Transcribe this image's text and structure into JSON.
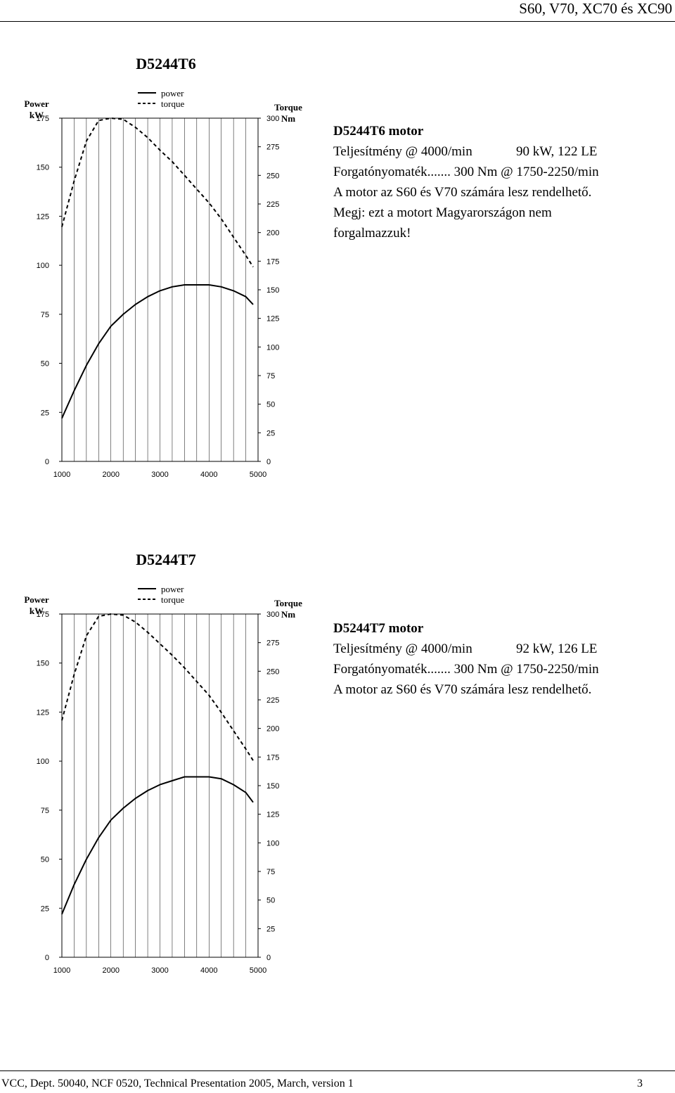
{
  "page": {
    "header": "S60, V70, XC70 és XC90",
    "footer_left": "VCC, Dept. 50040, NCF 0520, Technical Presentation 2005, March, version 1",
    "footer_page": "3"
  },
  "sections": [
    {
      "info": {
        "title": "D5244T6 motor",
        "power_label": "Teljesítmény @ 4000/min",
        "power_value": "90 kW, 122 LE",
        "torque_line": "Forgatónyomaték....... 300 Nm @ 1750-2250/min",
        "availability": "A motor az S60 és V70 számára lesz rendelhető.",
        "note_line1": "Megj: ezt a motort Magyarországon nem",
        "note_line2": "forgalmazzuk!"
      }
    },
    {
      "info": {
        "title": "D5244T7 motor",
        "power_label": "Teljesítmény @ 4000/min",
        "power_value": "92 kW, 126 LE",
        "torque_line": "Forgatónyomaték....... 300 Nm @ 1750-2250/min",
        "availability": "A motor az S60 és V70 számára lesz rendelhető."
      }
    }
  ],
  "chart_data": [
    {
      "type": "line",
      "title": "D5244T6",
      "left_axis_title": "Power",
      "left_axis_unit": "kW",
      "right_axis_title": "Torque",
      "right_axis_unit": "Nm",
      "legend": [
        "power",
        "torque"
      ],
      "x_ticks": [
        "1000",
        "2000",
        "3000",
        "4000",
        "5000"
      ],
      "left_ticks": [
        "0",
        "25",
        "50",
        "75",
        "100",
        "125",
        "150",
        "175"
      ],
      "right_ticks": [
        "0",
        "25",
        "50",
        "75",
        "100",
        "125",
        "150",
        "175",
        "200",
        "225",
        "250",
        "275",
        "300"
      ],
      "xlim": [
        1000,
        5000
      ],
      "ylim_left": [
        0,
        175
      ],
      "ylim_right": [
        0,
        300
      ],
      "series": [
        {
          "name": "power",
          "axis": "left",
          "style": "solid",
          "x": [
            1000,
            1250,
            1500,
            1750,
            2000,
            2250,
            2500,
            2750,
            3000,
            3250,
            3500,
            3750,
            4000,
            4250,
            4500,
            4750,
            4900
          ],
          "values": [
            22,
            36,
            49,
            60,
            69,
            75,
            80,
            84,
            87,
            89,
            90,
            90,
            90,
            89,
            87,
            84,
            80
          ]
        },
        {
          "name": "torque",
          "axis": "right",
          "style": "dashed",
          "x": [
            1000,
            1250,
            1500,
            1750,
            2000,
            2250,
            2500,
            2750,
            3000,
            3250,
            3500,
            3750,
            4000,
            4250,
            4500,
            4750,
            4900
          ],
          "values": [
            205,
            245,
            280,
            298,
            300,
            299,
            292,
            283,
            272,
            262,
            250,
            238,
            226,
            212,
            196,
            180,
            170
          ]
        }
      ]
    },
    {
      "type": "line",
      "title": "D5244T7",
      "left_axis_title": "Power",
      "left_axis_unit": "kW",
      "right_axis_title": "Torque",
      "right_axis_unit": "Nm",
      "legend": [
        "power",
        "torque"
      ],
      "x_ticks": [
        "1000",
        "2000",
        "3000",
        "4000",
        "5000"
      ],
      "left_ticks": [
        "0",
        "25",
        "50",
        "75",
        "100",
        "125",
        "150",
        "175"
      ],
      "right_ticks": [
        "0",
        "25",
        "50",
        "75",
        "100",
        "125",
        "150",
        "175",
        "200",
        "225",
        "250",
        "275",
        "300"
      ],
      "xlim": [
        1000,
        5000
      ],
      "ylim_left": [
        0,
        175
      ],
      "ylim_right": [
        0,
        300
      ],
      "series": [
        {
          "name": "power",
          "axis": "left",
          "style": "solid",
          "x": [
            1000,
            1250,
            1500,
            1750,
            2000,
            2250,
            2500,
            2750,
            3000,
            3250,
            3500,
            3750,
            4000,
            4250,
            4500,
            4750,
            4900
          ],
          "values": [
            22,
            37,
            50,
            61,
            70,
            76,
            81,
            85,
            88,
            90,
            92,
            92,
            92,
            91,
            88,
            84,
            79
          ]
        },
        {
          "name": "torque",
          "axis": "right",
          "style": "dashed",
          "x": [
            1000,
            1250,
            1500,
            1750,
            2000,
            2250,
            2500,
            2750,
            3000,
            3250,
            3500,
            3750,
            4000,
            4250,
            4500,
            4750,
            4900
          ],
          "values": [
            207,
            247,
            281,
            298,
            300,
            299,
            293,
            284,
            274,
            264,
            253,
            241,
            229,
            214,
            198,
            182,
            172
          ]
        }
      ]
    }
  ]
}
